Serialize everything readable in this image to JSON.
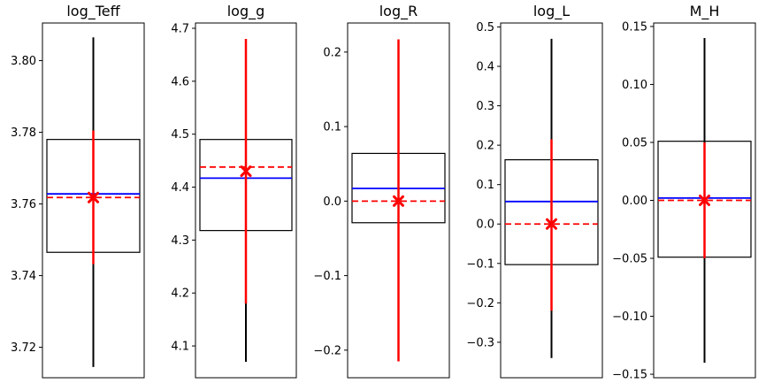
{
  "chart_data": [
    {
      "type": "box",
      "title": "log_Teff",
      "ylim": [
        3.7115,
        3.8105
      ],
      "yticks": [
        3.72,
        3.74,
        3.76,
        3.78,
        3.8
      ],
      "yticklabels": [
        "3.72",
        "3.74",
        "3.76",
        "3.78",
        "3.80"
      ],
      "whisker": [
        3.7145,
        3.8065
      ],
      "box": [
        3.7465,
        3.778
      ],
      "median": 3.7628,
      "reference": 3.7618,
      "error_bar": [
        3.7432,
        3.7805
      ],
      "marker": 3.7618
    },
    {
      "type": "box",
      "title": "log_g",
      "ylim": [
        4.04,
        4.71
      ],
      "yticks": [
        4.1,
        4.2,
        4.3,
        4.4,
        4.5,
        4.6,
        4.7
      ],
      "yticklabels": [
        "4.1",
        "4.2",
        "4.3",
        "4.4",
        "4.5",
        "4.6",
        "4.7"
      ],
      "whisker": [
        4.07,
        4.68
      ],
      "box": [
        4.318,
        4.49
      ],
      "median": 4.417,
      "reference": 4.438,
      "error_bar": [
        4.18,
        4.68
      ],
      "marker": 4.43
    },
    {
      "type": "box",
      "title": "log_R",
      "ylim": [
        -0.237,
        0.239
      ],
      "yticks": [
        -0.2,
        -0.1,
        0.0,
        0.1,
        0.2
      ],
      "yticklabels": [
        "−0.2",
        "−0.1",
        "0.0",
        "0.1",
        "0.2"
      ],
      "whisker": [
        -0.215,
        0.217
      ],
      "box": [
        -0.029,
        0.064
      ],
      "median": 0.017,
      "reference": 0.0,
      "error_bar": [
        -0.215,
        0.217
      ],
      "marker": 0.0
    },
    {
      "type": "box",
      "title": "log_L",
      "ylim": [
        -0.39,
        0.51
      ],
      "yticks": [
        -0.3,
        -0.2,
        -0.1,
        0.0,
        0.1,
        0.2,
        0.3,
        0.4,
        0.5
      ],
      "yticklabels": [
        "−0.3",
        "−0.2",
        "−0.1",
        "0.0",
        "0.1",
        "0.2",
        "0.3",
        "0.4",
        "0.5"
      ],
      "whisker": [
        -0.34,
        0.47
      ],
      "box": [
        -0.103,
        0.163
      ],
      "median": 0.057,
      "reference": 0.0,
      "error_bar": [
        -0.22,
        0.215
      ],
      "marker": 0.0
    },
    {
      "type": "box",
      "title": "M_H",
      "ylim": [
        -0.153,
        0.153
      ],
      "yticks": [
        -0.15,
        -0.1,
        -0.05,
        0.0,
        0.05,
        0.1,
        0.15
      ],
      "yticklabels": [
        "−0.15",
        "−0.10",
        "−0.05",
        "0.00",
        "0.05",
        "0.10",
        "0.15"
      ],
      "whisker": [
        -0.14,
        0.14
      ],
      "box": [
        -0.049,
        0.051
      ],
      "median": 0.002,
      "reference": 0.0,
      "error_bar": [
        -0.05,
        0.05
      ],
      "marker": 0.0
    }
  ],
  "colors": {
    "whisker": "#000000",
    "box": "#000000",
    "median": "#0000ff",
    "reference": "#ff0000",
    "error_bar": "#ff0000"
  }
}
